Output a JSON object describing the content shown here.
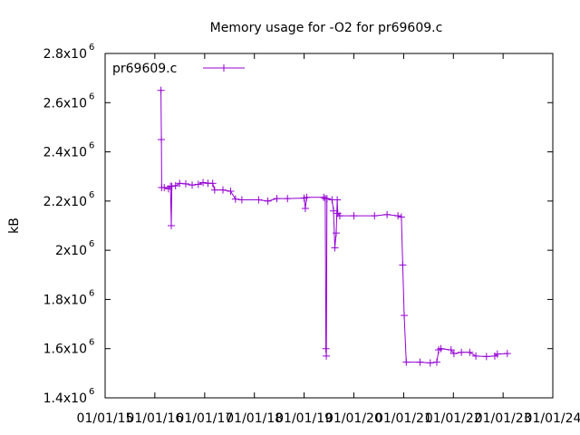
{
  "chart_data": {
    "type": "line",
    "title": "Memory usage for -O2 for pr69609.c",
    "xlabel": "",
    "ylabel": "kB",
    "ylim": [
      1400000,
      2800000
    ],
    "xlim": [
      "2015-01-01",
      "2024-01-01"
    ],
    "y_ticks": [
      {
        "base": "1.4x10",
        "exp": "6",
        "value": 1400000
      },
      {
        "base": "1.6x10",
        "exp": "6",
        "value": 1600000
      },
      {
        "base": "1.8x10",
        "exp": "6",
        "value": 1800000
      },
      {
        "base": "2x10",
        "exp": "6",
        "value": 2000000
      },
      {
        "base": "2.2x10",
        "exp": "6",
        "value": 2200000
      },
      {
        "base": "2.4x10",
        "exp": "6",
        "value": 2400000
      },
      {
        "base": "2.6x10",
        "exp": "6",
        "value": 2600000
      },
      {
        "base": "2.8x10",
        "exp": "6",
        "value": 2800000
      }
    ],
    "x_ticks": [
      {
        "label": "01/01/15",
        "value": "2015-01-01"
      },
      {
        "label": "01/01/16",
        "value": "2016-01-01"
      },
      {
        "label": "01/01/17",
        "value": "2017-01-01"
      },
      {
        "label": "01/01/18",
        "value": "2018-01-01"
      },
      {
        "label": "01/01/19",
        "value": "2019-01-01"
      },
      {
        "label": "01/01/20",
        "value": "2020-01-01"
      },
      {
        "label": "01/01/21",
        "value": "2021-01-01"
      },
      {
        "label": "01/01/22",
        "value": "2022-01-01"
      },
      {
        "label": "01/01/23",
        "value": "2023-01-01"
      },
      {
        "label": "01/01/24",
        "value": "2024-01-01"
      }
    ],
    "legend_position": "top-left",
    "grid": false,
    "series": [
      {
        "name": "pr69609.c",
        "color": "#9400d3",
        "points": [
          [
            "2016-02-15",
            2650000
          ],
          [
            "2016-02-18",
            2450000
          ],
          [
            "2016-02-20",
            2255000
          ],
          [
            "2016-03-10",
            2255000
          ],
          [
            "2016-04-10",
            2250000
          ],
          [
            "2016-04-25",
            2260000
          ],
          [
            "2016-05-01",
            2100000
          ],
          [
            "2016-05-05",
            2260000
          ],
          [
            "2016-06-01",
            2262000
          ],
          [
            "2016-07-01",
            2272000
          ],
          [
            "2016-08-15",
            2270000
          ],
          [
            "2016-10-01",
            2265000
          ],
          [
            "2016-11-15",
            2268000
          ],
          [
            "2016-12-20",
            2275000
          ],
          [
            "2017-01-25",
            2272000
          ],
          [
            "2017-03-01",
            2272000
          ],
          [
            "2017-03-15",
            2245000
          ],
          [
            "2017-05-15",
            2245000
          ],
          [
            "2017-07-10",
            2240000
          ],
          [
            "2017-08-15",
            2208000
          ],
          [
            "2017-10-01",
            2205000
          ],
          [
            "2018-02-01",
            2205000
          ],
          [
            "2018-04-10",
            2200000
          ],
          [
            "2018-06-15",
            2210000
          ],
          [
            "2018-09-01",
            2210000
          ],
          [
            "2019-01-01",
            2212000
          ],
          [
            "2019-01-10",
            2170000
          ],
          [
            "2019-01-20",
            2215000
          ],
          [
            "2019-05-25",
            2215000
          ],
          [
            "2019-06-05",
            2210000
          ],
          [
            "2019-06-10",
            1600000
          ],
          [
            "2019-06-13",
            1570000
          ],
          [
            "2019-06-18",
            2210000
          ],
          [
            "2019-07-25",
            2205000
          ],
          [
            "2019-08-05",
            2160000
          ],
          [
            "2019-08-15",
            2010000
          ],
          [
            "2019-08-25",
            2070000
          ],
          [
            "2019-09-01",
            2205000
          ],
          [
            "2019-09-05",
            2150000
          ],
          [
            "2019-09-20",
            2140000
          ],
          [
            "2020-01-01",
            2140000
          ],
          [
            "2020-06-01",
            2140000
          ],
          [
            "2020-09-01",
            2145000
          ],
          [
            "2020-11-20",
            2140000
          ],
          [
            "2020-12-15",
            2135000
          ],
          [
            "2020-12-25",
            1940000
          ],
          [
            "2021-01-05",
            1735000
          ],
          [
            "2021-01-20",
            1545000
          ],
          [
            "2021-05-01",
            1545000
          ],
          [
            "2021-07-15",
            1542000
          ],
          [
            "2021-09-01",
            1545000
          ],
          [
            "2021-09-15",
            1595000
          ],
          [
            "2021-10-01",
            1600000
          ],
          [
            "2021-12-15",
            1595000
          ],
          [
            "2022-01-05",
            1580000
          ],
          [
            "2022-03-01",
            1585000
          ],
          [
            "2022-05-01",
            1585000
          ],
          [
            "2022-06-15",
            1570000
          ],
          [
            "2022-09-01",
            1568000
          ],
          [
            "2022-11-01",
            1570000
          ],
          [
            "2022-11-20",
            1578000
          ],
          [
            "2023-02-01",
            1580000
          ]
        ]
      }
    ]
  }
}
